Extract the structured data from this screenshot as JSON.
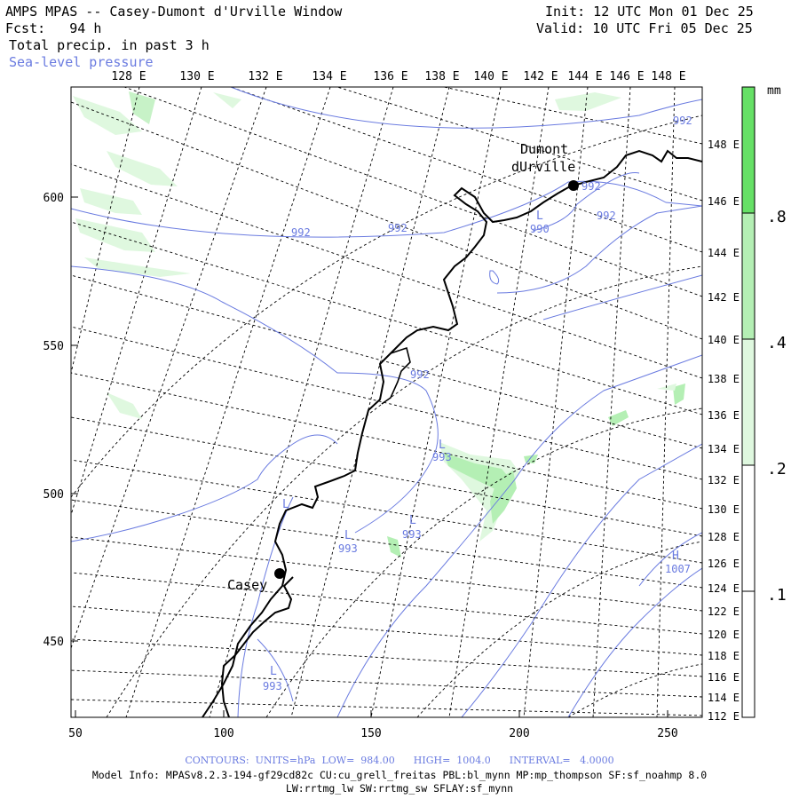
{
  "header": {
    "title": "AMPS MPAS -- Casey-Dumont d'Urville Window",
    "forecast": "Fcst:   94 h",
    "field": "Total precip. in past 3 h",
    "overlay": "Sea-level pressure",
    "init": "Init: 12 UTC Mon 01 Dec 25",
    "valid": "Valid: 10 UTC Fri 05 Dec 25"
  },
  "colors": {
    "contour": "#6a7be0",
    "precip_light": "#dff8df",
    "precip_mid": "#b4efb4",
    "precip_heavy": "#66e066",
    "coast": "#000000",
    "grid": "#000000"
  },
  "top_axis": {
    "labels": [
      "128 E",
      "130 E",
      "132 E",
      "134 E",
      "136 E",
      "138 E",
      "140 E",
      "142 E",
      "144 E",
      "146 E",
      "148 E"
    ]
  },
  "left_axis": {
    "labels": [
      "600",
      "550",
      "500",
      "450"
    ]
  },
  "bottom_axis": {
    "labels": [
      "50",
      "100",
      "150",
      "200",
      "250"
    ]
  },
  "right_axis": {
    "labels": [
      "148 E",
      "146 E",
      "144 E",
      "142 E",
      "140 E",
      "138 E",
      "136 E",
      "134 E",
      "132 E",
      "130 E",
      "128 E",
      "126 E",
      "124 E",
      "122 E",
      "120 E",
      "118 E",
      "116 E",
      "114 E",
      "112 E"
    ]
  },
  "legend": {
    "unit": "mm",
    "levels": [
      ".8",
      ".4",
      ".2",
      ".1"
    ]
  },
  "stations": [
    {
      "name": "Dumont",
      "name2": "dUrville"
    },
    {
      "name": "Casey"
    }
  ],
  "pressure_labels": [
    "992",
    "992",
    "992",
    "992",
    "992",
    "992",
    "990",
    "993",
    "993",
    "993",
    "993",
    "1007"
  ],
  "pressure_centers": [
    "L",
    "L",
    "L",
    "L",
    "L",
    "L",
    "H"
  ],
  "footer": {
    "contours": "CONTOURS:  UNITS=hPa  LOW=  984.00      HIGH=  1004.0      INTERVAL=   4.0000",
    "model_info": "Model Info: MPASv8.2.3-194-gf29cd82c CU:cu_grell_freitas PBL:bl_mynn MP:mp_thompson SF:sf_noahmp 8.0",
    "model_info2": "LW:rrtmg_lw SW:rrtmg_sw SFLAY:sf_mynn"
  }
}
